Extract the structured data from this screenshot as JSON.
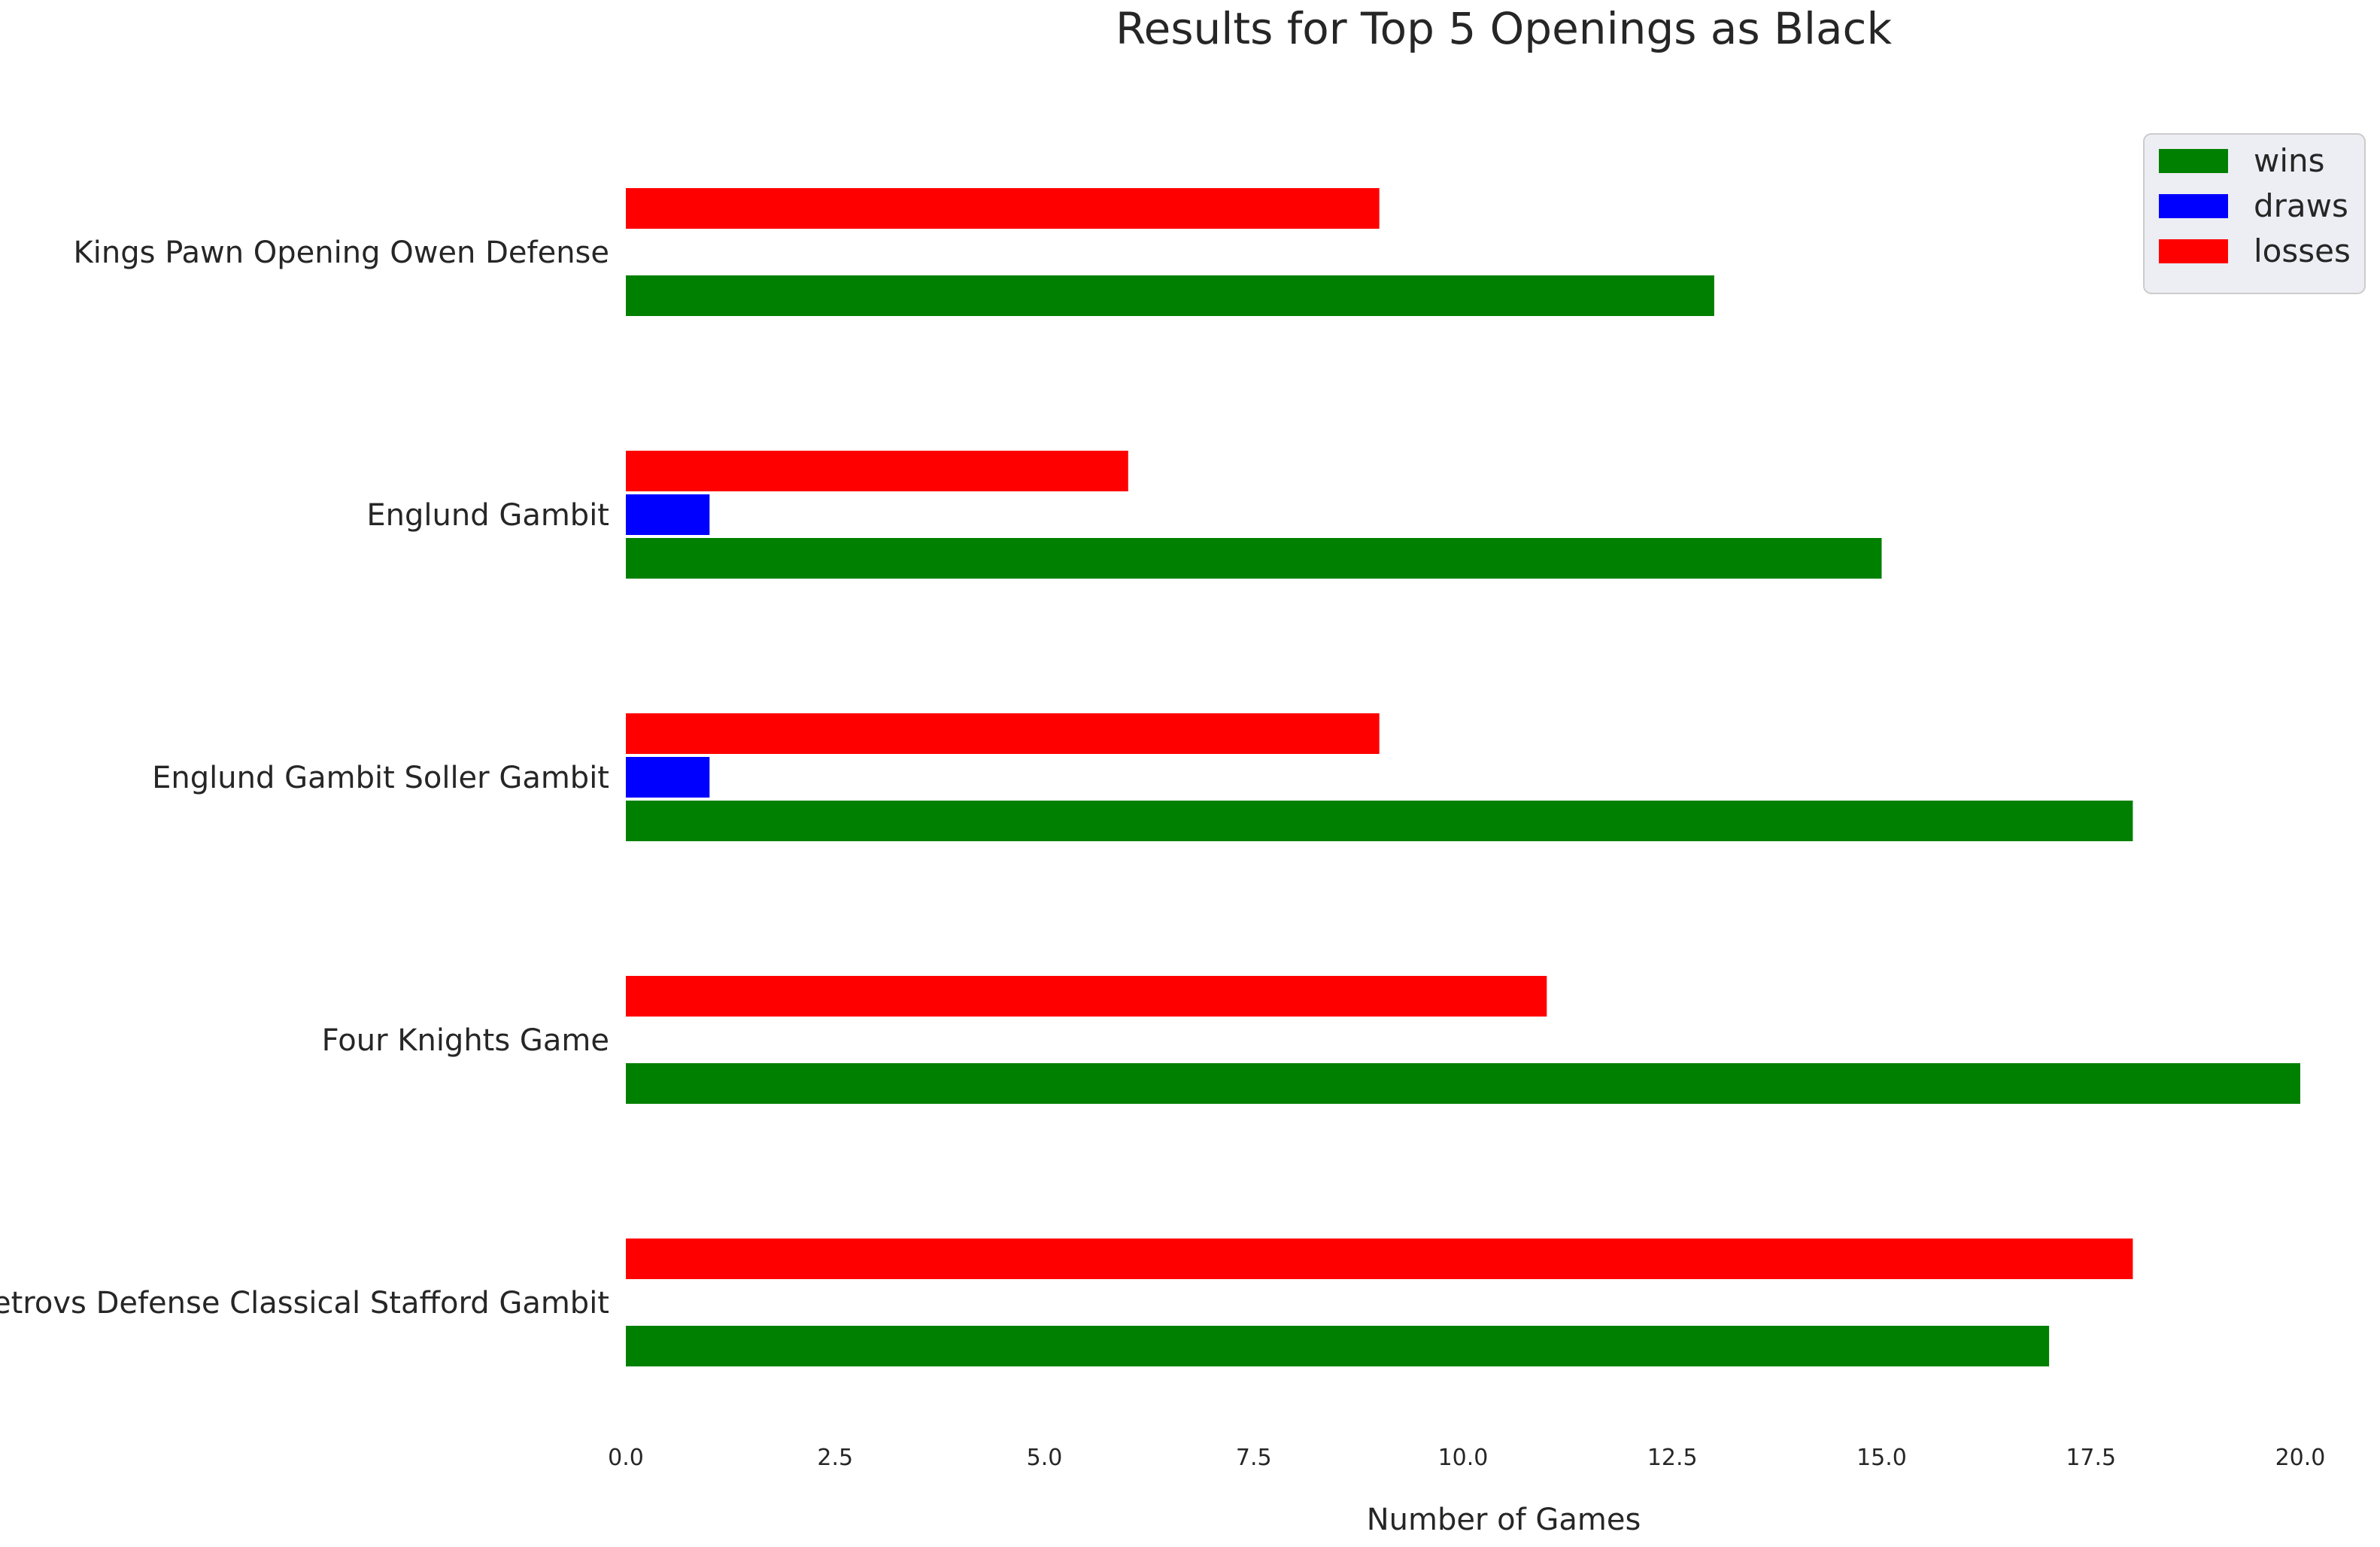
{
  "chart_data": {
    "type": "bar",
    "orientation": "horizontal",
    "title": "Results for Top 5 Openings as Black",
    "xlabel": "Number of Games",
    "ylabel": "",
    "xlim": [
      0,
      20
    ],
    "xticks": [
      "0.0",
      "2.5",
      "5.0",
      "7.5",
      "10.0",
      "12.5",
      "15.0",
      "17.5",
      "20.0"
    ],
    "categories": [
      "Kings Pawn Opening Owen Defense",
      "Englund Gambit",
      "Englund Gambit Soller Gambit",
      "Four Knights Game",
      "Petrovs Defense Classical Stafford Gambit"
    ],
    "series": [
      {
        "name": "wins",
        "color": "#008000",
        "values": [
          13,
          15,
          18,
          20,
          17
        ]
      },
      {
        "name": "draws",
        "color": "#0000ff",
        "values": [
          0,
          1,
          1,
          0,
          0
        ]
      },
      {
        "name": "losses",
        "color": "#ff0000",
        "values": [
          9,
          6,
          9,
          11,
          18
        ]
      }
    ],
    "grid": false,
    "legend": "top-right"
  }
}
